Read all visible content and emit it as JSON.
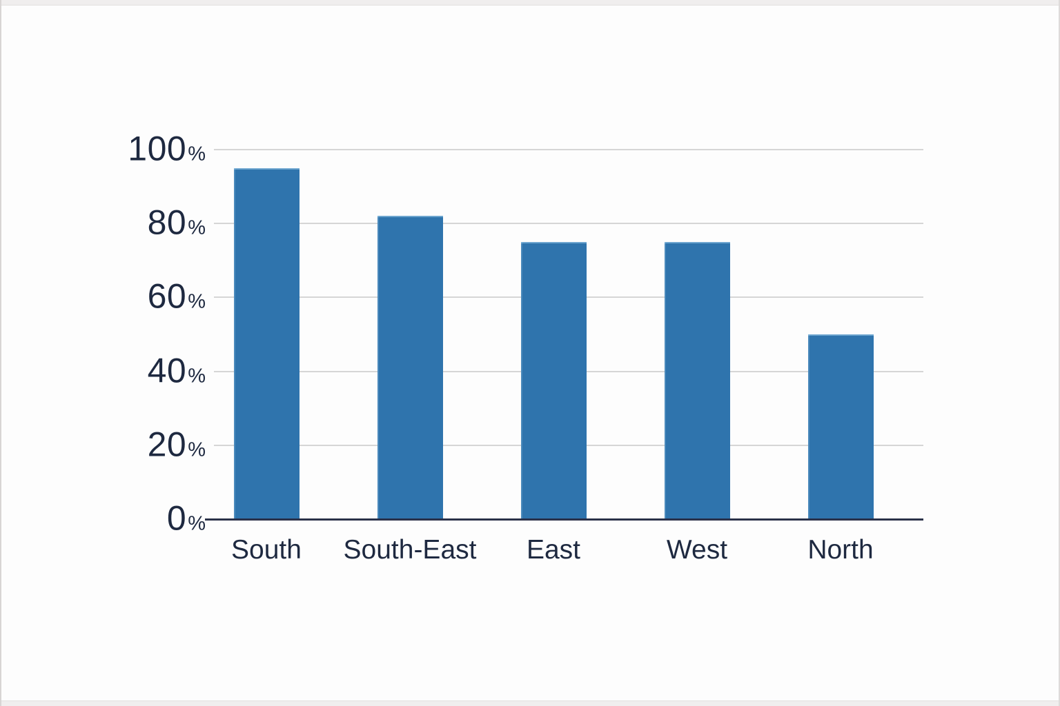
{
  "window": {
    "background_color": "#fdfdfd",
    "frame_color": "#f0eeee",
    "frame_edge_color": "#d8d5d4"
  },
  "chart_data": {
    "type": "bar",
    "title": "",
    "xlabel": "",
    "ylabel": "",
    "categories": [
      "South",
      "South-East",
      "East",
      "West",
      "North"
    ],
    "values": [
      95,
      82,
      75,
      75,
      50
    ],
    "value_unit": "%",
    "ylim": [
      0,
      100
    ],
    "y_ticks": [
      0,
      20,
      40,
      60,
      80,
      100
    ],
    "y_tick_suffix": "%",
    "grid": true,
    "legend": false,
    "bar_color": "#2f74ad",
    "grid_color": "#d6d6d6",
    "axis_color": "#2a3149",
    "label_color": "#1e2940"
  }
}
